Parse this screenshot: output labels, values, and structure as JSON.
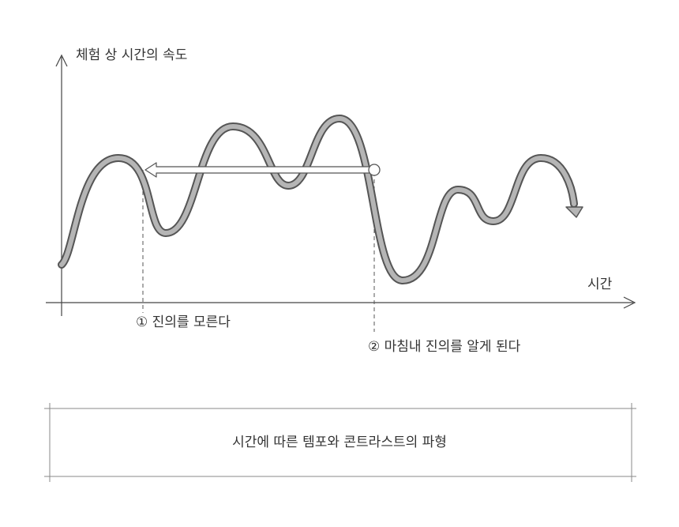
{
  "y_axis_label": "체험 상 시간의 속도",
  "x_axis_label": "시간",
  "annotations": [
    "① 진의를 모른다",
    "② 마침내 진의를 알게 된다"
  ],
  "caption": "시간에 따른 템포와 콘트라스트의 파형"
}
